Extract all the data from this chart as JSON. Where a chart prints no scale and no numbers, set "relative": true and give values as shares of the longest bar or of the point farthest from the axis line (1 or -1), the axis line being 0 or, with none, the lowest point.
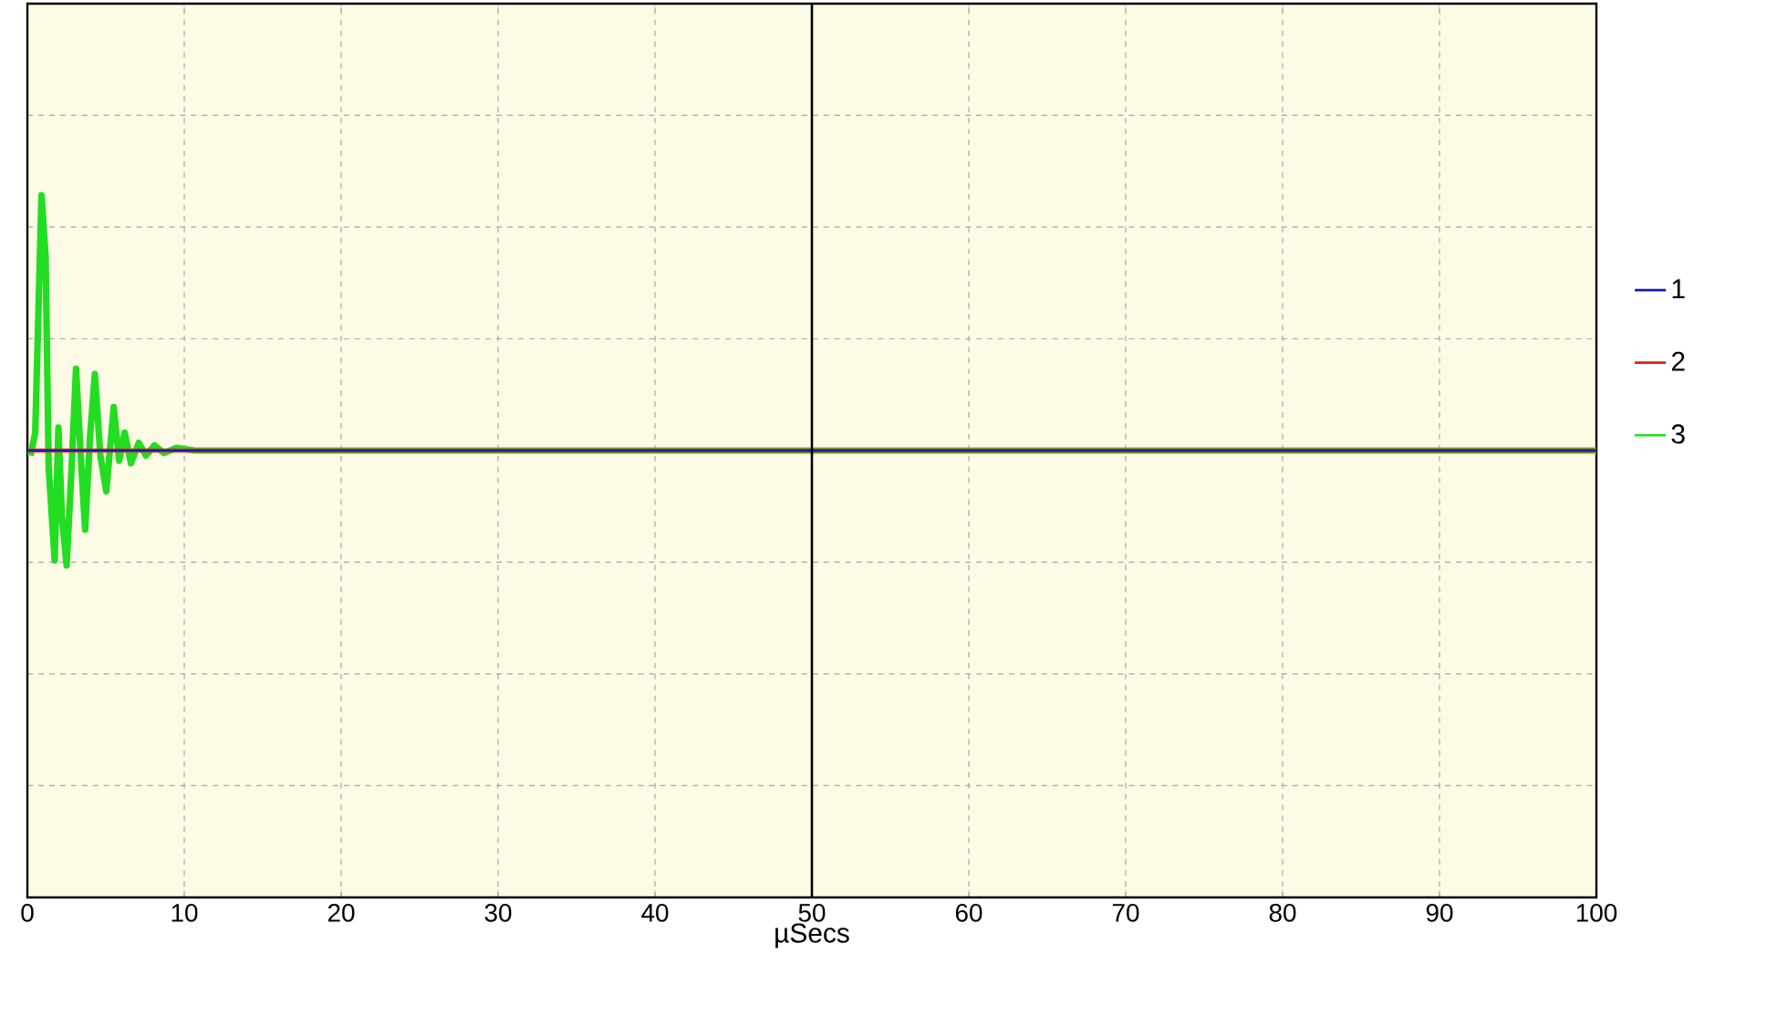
{
  "chart_data": {
    "type": "line",
    "xlabel": "µSecs",
    "relative": true,
    "xlim": [
      0,
      100
    ],
    "xticks": [
      0,
      10,
      20,
      30,
      40,
      50,
      60,
      70,
      80,
      90,
      100
    ],
    "grid": true,
    "legend": "right",
    "line_style": "solid",
    "ref_lines": [
      {
        "axis": "x",
        "value": 50,
        "color": "#000000"
      }
    ],
    "series": [
      {
        "name": "1",
        "color": "#1a1aa8",
        "x": [
          0,
          12,
          50,
          100
        ],
        "values": [
          0,
          0,
          0,
          0
        ]
      },
      {
        "name": "2",
        "color": "#e02020",
        "x": [
          0,
          12,
          50,
          100
        ],
        "values": [
          0,
          0,
          0,
          0
        ]
      },
      {
        "name": "3",
        "color": "#22dd22",
        "x": [
          0.2,
          0.5,
          0.9,
          1.16,
          1.36,
          1.74,
          1.98,
          2.2,
          2.5,
          2.8,
          3.1,
          3.4,
          3.68,
          3.99,
          4.3,
          4.65,
          5.03,
          5.5,
          5.85,
          6.2,
          6.6,
          7.1,
          7.56,
          8.1,
          8.7,
          9.5,
          10.7,
          20,
          50,
          100
        ],
        "values": [
          -0.02,
          0.07,
          1.0,
          0.76,
          -0.07,
          -0.43,
          0.09,
          -0.26,
          -0.45,
          -0.09,
          0.32,
          -0.02,
          -0.31,
          0.05,
          0.3,
          -0.02,
          -0.16,
          0.17,
          -0.04,
          0.07,
          -0.05,
          0.03,
          -0.02,
          0.02,
          -0.01,
          0.01,
          0,
          0,
          0,
          0
        ]
      }
    ]
  }
}
